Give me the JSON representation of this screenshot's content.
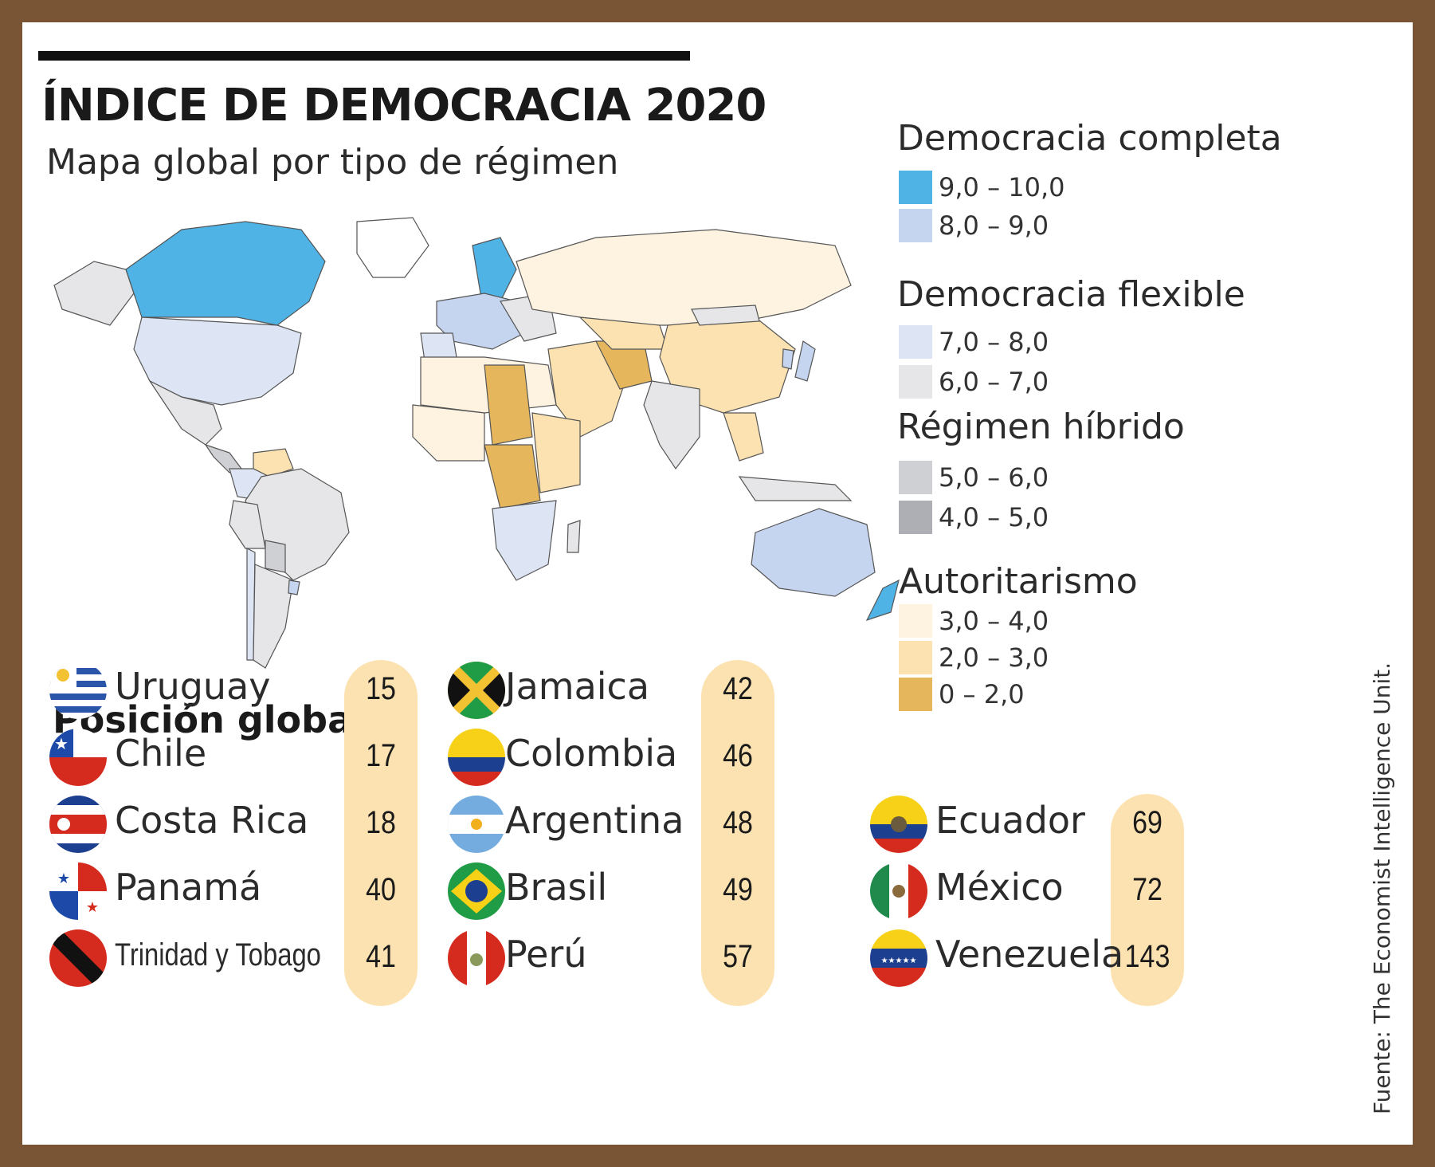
{
  "title": "ÍNDICE DE DEMOCRACIA 2020",
  "subtitle": "Mapa global por tipo de régimen",
  "colors": {
    "full_9_10": "#4fb3e6",
    "full_8_9": "#c5d4ef",
    "flawed_7_8": "#dde5f5",
    "flawed_6_7": "#e6e6e8",
    "hybrid_5_6": "#cfd0d4",
    "hybrid_4_5": "#aeafb5",
    "auth_3_4": "#fdf3e0",
    "auth_2_3": "#fbe2b0",
    "auth_0_2": "#e5b65c",
    "pill": "#fbe2b0",
    "frame": "#7a5535"
  },
  "legend": {
    "groups": [
      {
        "heading": "Democracia completa",
        "items": [
          {
            "range": "9,0 – 10,0",
            "color": "#4fb3e6"
          },
          {
            "range": "8,0 – 9,0",
            "color": "#c5d4ef"
          }
        ]
      },
      {
        "heading": "Democracia flexible",
        "items": [
          {
            "range": "7,0 – 8,0",
            "color": "#dde5f5"
          },
          {
            "range": "6,0 – 7,0",
            "color": "#e6e6e8"
          }
        ]
      },
      {
        "heading": "Régimen híbrido",
        "items": [
          {
            "range": "5,0 – 6,0",
            "color": "#cfd0d4"
          },
          {
            "range": "4,0 – 5,0",
            "color": "#aeafb5"
          }
        ]
      },
      {
        "heading": "Autoritarismo",
        "items": [
          {
            "range": "3,0 – 4,0",
            "color": "#fdf3e0"
          },
          {
            "range": "2,0 – 3,0",
            "color": "#fbe2b0"
          },
          {
            "range": "0 – 2,0",
            "color": "#e5b65c"
          }
        ]
      }
    ]
  },
  "ranking": {
    "title": "Posición global",
    "columns": [
      [
        {
          "country": "Uruguay",
          "rank": "15",
          "flag": "uruguay-flag"
        },
        {
          "country": "Chile",
          "rank": "17",
          "flag": "chile-flag"
        },
        {
          "country": "Costa Rica",
          "rank": "18",
          "flag": "costa-rica-flag"
        },
        {
          "country": "Panamá",
          "rank": "40",
          "flag": "panama-flag"
        },
        {
          "country": "Trinidad y Tobago",
          "rank": "41",
          "flag": "trinidad-tobago-flag"
        }
      ],
      [
        {
          "country": "Jamaica",
          "rank": "42",
          "flag": "jamaica-flag"
        },
        {
          "country": "Colombia",
          "rank": "46",
          "flag": "colombia-flag"
        },
        {
          "country": "Argentina",
          "rank": "48",
          "flag": "argentina-flag"
        },
        {
          "country": "Brasil",
          "rank": "49",
          "flag": "brazil-flag"
        },
        {
          "country": "Perú",
          "rank": "57",
          "flag": "peru-flag"
        }
      ],
      [
        {
          "country": "Ecuador",
          "rank": "69",
          "flag": "ecuador-flag"
        },
        {
          "country": "México",
          "rank": "72",
          "flag": "mexico-flag"
        },
        {
          "country": "Venezuela",
          "rank": "143",
          "flag": "venezuela-flag"
        }
      ]
    ]
  },
  "source": "Fuente: The Economist Intelligence Unit."
}
